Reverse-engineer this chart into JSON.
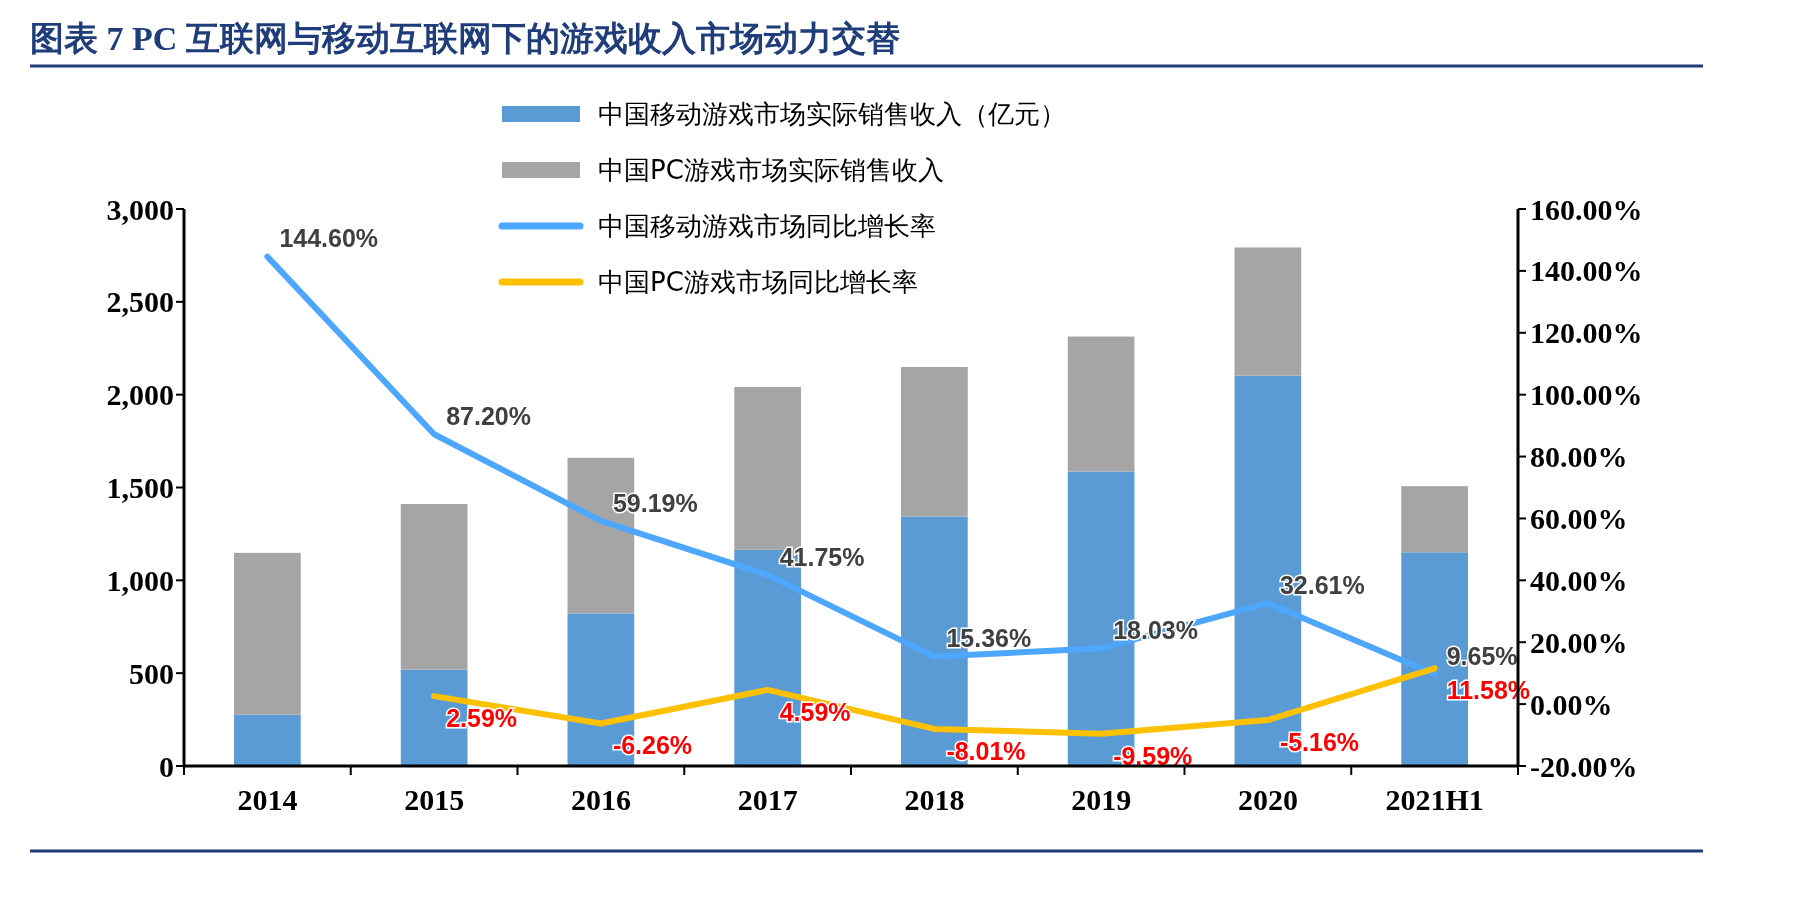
{
  "chart_data": {
    "type": "bar",
    "title": "图表 7   PC 互联网与移动互联网下的游戏收入市场动力交替",
    "categories": [
      "2014",
      "2015",
      "2016",
      "2017",
      "2018",
      "2019",
      "2020",
      "2021H1"
    ],
    "stacked": true,
    "series": [
      {
        "name": "中国移动游戏市场实际销售收入（亿元）",
        "color": "#5b9bd5",
        "values": [
          276,
          519,
          822,
          1164,
          1344,
          1586,
          2102,
          1151
        ]
      },
      {
        "name": "中国PC游戏市场实际销售收入",
        "color": "#a5a5a5",
        "values": [
          872,
          892,
          838,
          877,
          805,
          727,
          691,
          356
        ]
      },
      {
        "name": "中国移动游戏市场同比增长率",
        "type": "line",
        "axis": "y2",
        "color": "#4da6ff",
        "values": [
          144.6,
          87.2,
          59.19,
          41.75,
          15.36,
          18.03,
          32.61,
          9.65
        ],
        "value_labels": [
          "144.60%",
          "87.20%",
          "59.19%",
          "41.75%",
          "15.36%",
          "18.03%",
          "32.61%",
          "9.65%"
        ]
      },
      {
        "name": "中国PC游戏市场同比增长率",
        "type": "line",
        "axis": "y2",
        "color": "#ffc000",
        "values": [
          null,
          2.59,
          -6.26,
          4.59,
          -8.01,
          -9.59,
          -5.16,
          11.58
        ],
        "value_labels": [
          null,
          "2.59%",
          "-6.26%",
          "4.59%",
          "-8.01%",
          "-9.59%",
          "-5.16%",
          "11.58%"
        ]
      }
    ],
    "ylim": [
      0,
      3000
    ],
    "yticks": [
      0,
      500,
      {
        "value": 1000,
        "label": "1,000"
      },
      {
        "value": 1500,
        "label": "1,500"
      },
      {
        "value": 2000,
        "label": "2,000"
      },
      {
        "value": 2500,
        "label": "2,500"
      },
      {
        "value": 3000,
        "label": "3,000"
      }
    ],
    "y2lim": [
      -20,
      160
    ],
    "y2ticks": [
      {
        "value": -20,
        "label": "-20.00%"
      },
      {
        "value": 0,
        "label": "0.00%"
      },
      {
        "value": 20,
        "label": "20.00%"
      },
      {
        "value": 40,
        "label": "40.00%"
      },
      {
        "value": 60,
        "label": "60.00%"
      },
      {
        "value": 80,
        "label": "80.00%"
      },
      {
        "value": 100,
        "label": "100.00%"
      },
      {
        "value": 120,
        "label": "120.00%"
      },
      {
        "value": 140,
        "label": "140.00%"
      },
      {
        "value": 160,
        "label": "160.00%"
      }
    ],
    "legend": "top",
    "grid": false
  }
}
